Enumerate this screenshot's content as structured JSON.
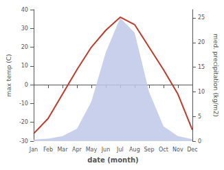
{
  "chart_data": {
    "type": "line",
    "categories": [
      "Jan",
      "Feb",
      "Mar",
      "Apr",
      "May",
      "Jun",
      "Jul",
      "Aug",
      "Sep",
      "Oct",
      "Nov",
      "Dec"
    ],
    "xlabel": "date (month)",
    "ylabel": "max temp (C)",
    "y2label": "med. precipitation (kg/m2)",
    "series": [
      {
        "type": "area",
        "axis": "y2",
        "color": "#bfc8e8",
        "values": [
          0.3,
          0.5,
          1.0,
          2.5,
          8.0,
          18.0,
          25.0,
          22.0,
          10.0,
          3.0,
          1.0,
          0.4
        ]
      },
      {
        "type": "line",
        "axis": "y",
        "color": "#c0392b",
        "values": [
          -26,
          -18,
          -5,
          8,
          20,
          29,
          36,
          32,
          20,
          8,
          -5,
          -24
        ]
      }
    ],
    "ylim": [
      -30,
      40
    ],
    "yticks": [
      -30,
      -20,
      -10,
      0,
      10,
      20,
      30,
      40
    ],
    "y2lim": [
      0,
      26.667
    ],
    "y2ticks": [
      0,
      5,
      10,
      15,
      20,
      25
    ],
    "grid": false
  }
}
